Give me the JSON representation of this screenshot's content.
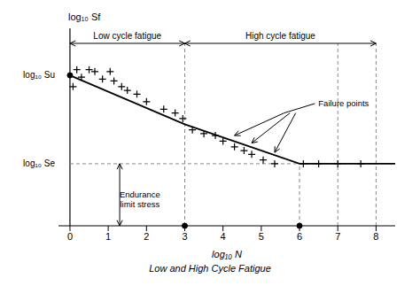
{
  "chart_data": {
    "type": "line",
    "title": "Low and High Cycle Fatigue",
    "x_label": "log₁₀ N",
    "y_label": "log₁₀ Sf",
    "xlim": [
      -0.3,
      8.5
    ],
    "xticks": [
      0,
      1,
      2,
      3,
      4,
      5,
      6,
      7,
      8
    ],
    "ylim": [
      0,
      1.05
    ],
    "yticks": [],
    "tick_labels": "x",
    "grid": false,
    "background": "#ffffff",
    "series": [
      {
        "type": "line",
        "color": "#000000",
        "x": [
          0,
          3.0,
          6.0,
          8.5
        ],
        "values": [
          0.8,
          0.54,
          0.33,
          0.33
        ]
      },
      {
        "type": "scatter",
        "marker": "plus",
        "color": "#000000",
        "x": [
          0.08,
          0.18,
          0.3,
          0.5,
          0.65,
          0.85,
          1.05,
          1.15,
          1.35,
          1.5,
          1.75,
          2.0,
          2.45,
          2.75,
          2.95
        ],
        "values": [
          0.74,
          0.83,
          0.79,
          0.83,
          0.82,
          0.78,
          0.82,
          0.77,
          0.74,
          0.72,
          0.7,
          0.66,
          0.62,
          0.6,
          0.57
        ]
      },
      {
        "type": "scatter",
        "marker": "plus",
        "color": "#000000",
        "x": [
          3.2,
          3.5,
          3.8,
          4.0,
          4.3,
          4.55,
          4.75,
          5.05,
          5.35
        ],
        "values": [
          0.51,
          0.49,
          0.48,
          0.45,
          0.42,
          0.4,
          0.38,
          0.35,
          0.33
        ]
      },
      {
        "type": "scatter",
        "marker": "plus",
        "color": "#000000",
        "x": [
          6.1,
          6.5,
          7.0,
          7.6
        ],
        "values": [
          0.33,
          0.33,
          0.33,
          0.33
        ]
      }
    ],
    "reference_lines": [
      {
        "axis": "y",
        "value": 0.33,
        "from": 0,
        "to": 8.0,
        "color": "#888888",
        "line_style": "dashed"
      },
      {
        "axis": "x",
        "value": 3.0,
        "from": 0,
        "to": 0.97,
        "color": "#888888",
        "line_style": "dashed"
      },
      {
        "axis": "x",
        "value": 6.0,
        "from": 0,
        "to": 0.33,
        "color": "#888888",
        "line_style": "dashed"
      },
      {
        "axis": "x",
        "value": 7.0,
        "from": 0,
        "to": 0.97,
        "color": "#888888",
        "line_style": "dashed"
      },
      {
        "axis": "x",
        "value": 8.0,
        "from": 0,
        "to": 0.97,
        "color": "#888888",
        "line_style": "dashed"
      }
    ],
    "points": [
      [
        3.0,
        0
      ],
      [
        6.0,
        0
      ],
      [
        0,
        0.8
      ]
    ],
    "level_labels": [
      {
        "text": "log₁₀ Su",
        "value": 0.8
      },
      {
        "text": "log₁₀ Se",
        "value": 0.33
      }
    ],
    "regions": {
      "y": 0.97,
      "spans": [
        {
          "text": "Low cycle fatigue",
          "from": 0,
          "to": 3.0
        },
        {
          "text": "High cycle fatigue",
          "from": 3.0,
          "to": 8.0
        }
      ]
    },
    "endurance_arrow": {
      "x": 1.3,
      "from": 0.0,
      "to": 0.33,
      "text": "Endurance\nlimit stress",
      "text_at": [
        1.55,
        0.14
      ]
    },
    "failure_annotation": {
      "text": "Failure points",
      "arrows": [
        {
          "from": [
            5.6,
            0.6
          ],
          "to": [
            4.3,
            0.48
          ]
        },
        {
          "from": [
            5.75,
            0.6
          ],
          "to": [
            4.75,
            0.44
          ]
        },
        {
          "from": [
            5.9,
            0.6
          ],
          "to": [
            5.35,
            0.39
          ]
        }
      ],
      "leader": [
        [
          5.6,
          0.6
        ],
        [
          6.4,
          0.65
        ]
      ]
    }
  }
}
